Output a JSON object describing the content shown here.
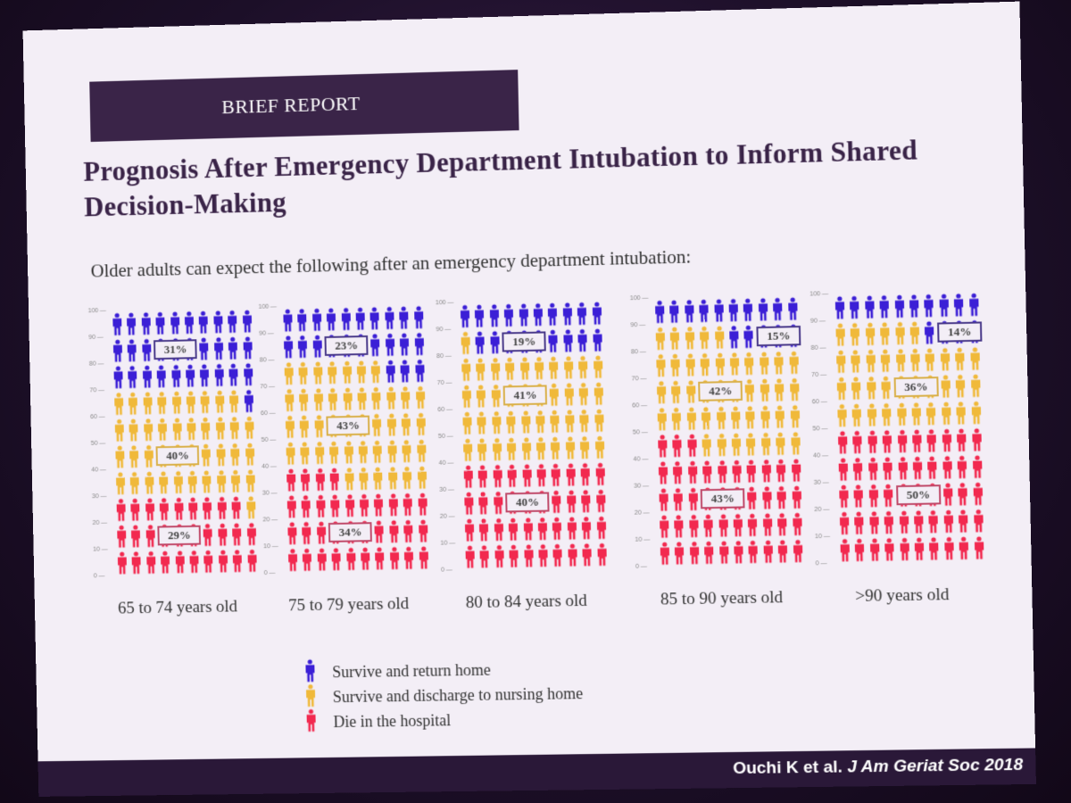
{
  "header": {
    "label": "BRIEF REPORT"
  },
  "title": "Prognosis After Emergency Department Intubation to Inform Shared Decision-Making",
  "subtitle": "Older adults can expect the following after an emergency department intubation:",
  "citation": {
    "authors": "Ouchi K et al.",
    "journal": "J Am Geriat Soc 2018"
  },
  "colors": {
    "home": "#3b1fd6",
    "nursing": "#f0b93a",
    "die": "#f2294f",
    "header_bg": "#3a2448"
  },
  "legend": [
    {
      "key": "home",
      "label": "Survive and return home"
    },
    {
      "key": "nursing",
      "label": "Survive and discharge to nursing home"
    },
    {
      "key": "die",
      "label": "Die in the hospital"
    }
  ],
  "chart_data": {
    "type": "icon-array",
    "units_per_chart": 100,
    "y_ticks": [
      "0",
      "10",
      "20",
      "30",
      "40",
      "50",
      "60",
      "70",
      "80",
      "90",
      "100"
    ],
    "categories": [
      "65 to 74 years old",
      "75 to 79 years old",
      "80 to 84 years old",
      "85 to 90 years old",
      ">90 years old"
    ],
    "series": [
      {
        "name": "Survive and return home",
        "key": "home",
        "values": [
          31,
          23,
          19,
          15,
          14
        ],
        "labels": [
          "31%",
          "23%",
          "19%",
          "15%",
          "14%"
        ]
      },
      {
        "name": "Survive and discharge to nursing home",
        "key": "nursing",
        "values": [
          40,
          43,
          41,
          42,
          36
        ],
        "labels": [
          "40%",
          "43%",
          "41%",
          "42%",
          "36%"
        ]
      },
      {
        "name": "Die in the hospital",
        "key": "die",
        "values": [
          29,
          34,
          40,
          43,
          50
        ],
        "labels": [
          "29%",
          "34%",
          "40%",
          "43%",
          "50%"
        ]
      }
    ]
  }
}
